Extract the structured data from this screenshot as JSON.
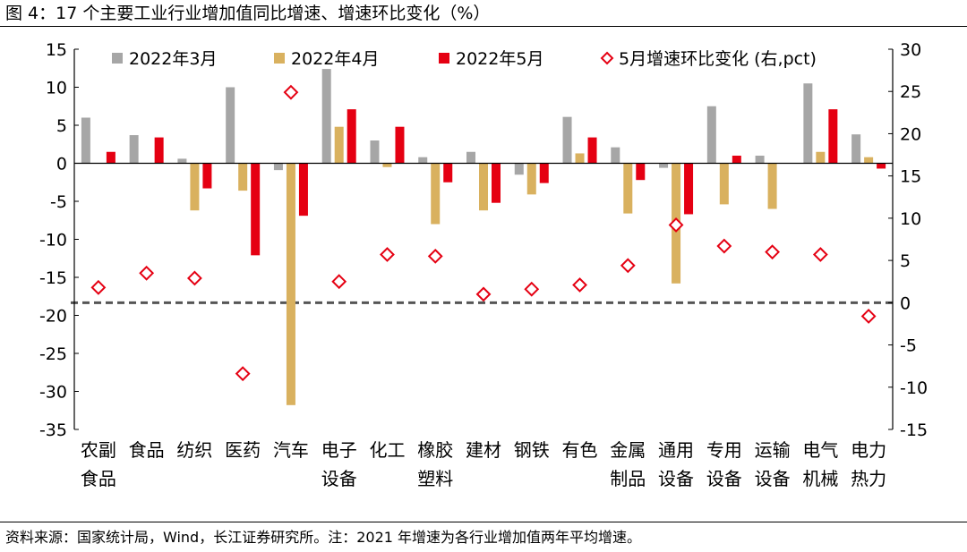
{
  "figure_title": "图 4：17 个主要工业行业增加值同比增速、增速环比变化（%）",
  "source_note": "资料来源：国家统计局，Wind，长江证券研究所。注：2021 年增速为各行业增加值两年平均增速。",
  "chart_data": {
    "type": "bar",
    "title": "",
    "categories": [
      [
        "农副",
        "食品"
      ],
      [
        "食品"
      ],
      [
        "纺织"
      ],
      [
        "医药"
      ],
      [
        "汽车"
      ],
      [
        "电子",
        "设备"
      ],
      [
        "化工"
      ],
      [
        "橡胶",
        "塑料"
      ],
      [
        "建材"
      ],
      [
        "钢铁"
      ],
      [
        "有色"
      ],
      [
        "金属",
        "制品"
      ],
      [
        "通用",
        "设备"
      ],
      [
        "专用",
        "设备"
      ],
      [
        "运输",
        "设备"
      ],
      [
        "电气",
        "机械"
      ],
      [
        "电力",
        "热力"
      ]
    ],
    "series": [
      {
        "name": "2022年3月",
        "type": "bar",
        "axis": "left",
        "color": "#a6a6a6",
        "values": [
          6.0,
          3.7,
          0.6,
          10.0,
          -0.9,
          12.4,
          3.0,
          0.8,
          1.5,
          -1.5,
          6.1,
          2.1,
          -0.6,
          7.5,
          1.0,
          10.5,
          3.8
        ]
      },
      {
        "name": "2022年4月",
        "type": "bar",
        "axis": "left",
        "color": "#d9b15f",
        "values": [
          0.0,
          0.0,
          -6.2,
          -3.6,
          -31.8,
          4.8,
          -0.5,
          -8.0,
          -6.2,
          -4.1,
          1.3,
          -6.6,
          -15.8,
          -5.4,
          -6.0,
          1.5,
          0.8
        ]
      },
      {
        "name": "2022年5月",
        "type": "bar",
        "axis": "left",
        "color": "#e50012",
        "values": [
          1.5,
          3.4,
          -3.3,
          -12.1,
          -6.9,
          7.1,
          4.8,
          -2.5,
          -5.2,
          -2.6,
          3.4,
          -2.2,
          -6.7,
          1.0,
          0.0,
          7.1,
          -0.7
        ]
      },
      {
        "name": "5月增速环比变化 (右,pct)",
        "type": "scatter",
        "axis": "right",
        "color": "#e50012",
        "marker": "diamond-open",
        "values": [
          1.8,
          3.5,
          2.9,
          -8.4,
          24.9,
          2.5,
          5.7,
          5.5,
          1.0,
          1.6,
          2.1,
          4.4,
          9.2,
          6.7,
          6.0,
          5.7,
          -1.6
        ]
      }
    ],
    "y_left": {
      "min": -35,
      "max": 15,
      "ticks": [
        15,
        10,
        5,
        0,
        -5,
        -10,
        -15,
        -20,
        -25,
        -30,
        -35
      ]
    },
    "y_right": {
      "min": -15,
      "max": 30,
      "ticks": [
        30,
        25,
        20,
        15,
        10,
        5,
        0,
        -5,
        -10,
        -15
      ]
    },
    "reference_line": {
      "axis": "right",
      "value": 0,
      "style": "dashed",
      "color": "#555555"
    },
    "legend_position": "top",
    "grid": false
  }
}
